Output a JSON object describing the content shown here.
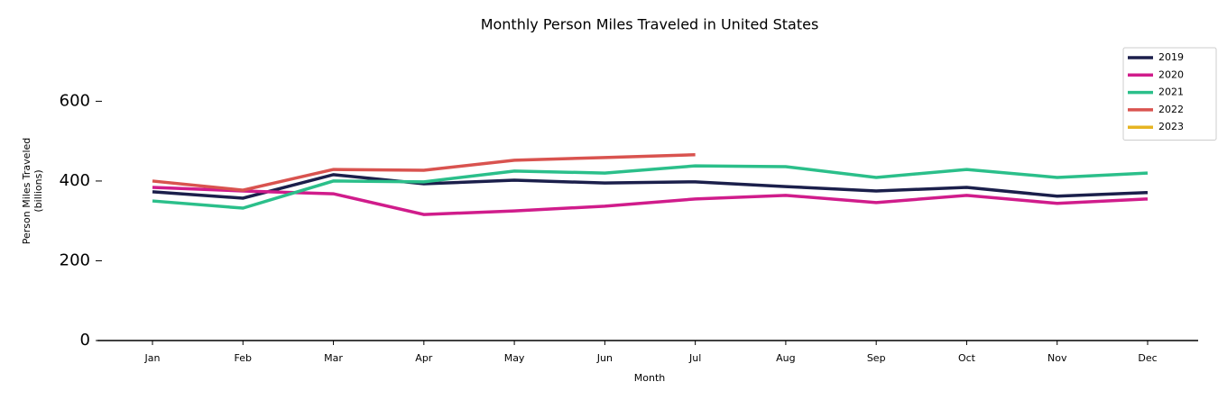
{
  "chart_data": {
    "type": "line",
    "title": "Monthly Person Miles Traveled in United States",
    "xlabel": "Month",
    "ylabel": "Person Miles Traveled\n(billions)",
    "categories": [
      "Jan",
      "Feb",
      "Mar",
      "Apr",
      "May",
      "Jun",
      "Jul",
      "Aug",
      "Sep",
      "Oct",
      "Nov",
      "Dec"
    ],
    "series": [
      {
        "name": "2019",
        "color": "#1b1f4b",
        "values": [
          373,
          357,
          416,
          393,
          402,
          395,
          398,
          386,
          375,
          384,
          362,
          371
        ]
      },
      {
        "name": "2020",
        "color": "#d01c8b",
        "values": [
          384,
          375,
          368,
          316,
          325,
          337,
          355,
          364,
          346,
          364,
          344,
          355
        ]
      },
      {
        "name": "2021",
        "color": "#2bbf8a",
        "values": [
          350,
          332,
          400,
          398,
          425,
          420,
          438,
          436,
          409,
          429,
          409,
          420
        ]
      },
      {
        "name": "2022",
        "color": "#d9534f",
        "values": [
          400,
          377,
          429,
          427,
          452,
          459,
          466,
          null,
          null,
          null,
          null,
          null
        ]
      },
      {
        "name": "2023",
        "color": "#e6b422",
        "values": [
          null,
          null,
          null,
          null,
          null,
          null,
          null,
          null,
          null,
          null,
          null,
          null
        ]
      }
    ],
    "ylim": [
      0,
      750
    ],
    "yticks": [
      0,
      200,
      400,
      600
    ],
    "legend": "upper right"
  }
}
